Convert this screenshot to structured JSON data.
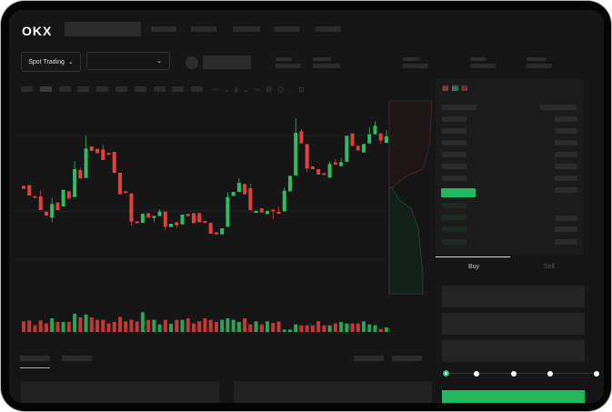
{
  "header": {
    "logo": "OKX"
  },
  "toolbar": {
    "market_select": "Spot Trading",
    "pair_select": ""
  },
  "order_form": {
    "tabs": [
      {
        "label": "Buy",
        "active": true
      },
      {
        "label": "Sell",
        "active": false
      }
    ],
    "slider_percent": 0
  },
  "colors": {
    "up": "#2ebd62",
    "down": "#e0403f",
    "bg": "#161616",
    "accent": "#22b85f"
  },
  "chart_data": {
    "type": "candlestick",
    "title": "",
    "xlabel": "",
    "ylabel": "",
    "ohlc": [
      [
        500,
        490,
        500,
        490
      ],
      [
        502,
        468,
        502,
        468
      ],
      [
        466,
        460,
        466,
        460
      ],
      [
        465,
        420,
        485,
        420
      ],
      [
        415,
        402,
        415,
        402
      ],
      [
        395,
        440,
        460,
        380
      ],
      [
        445,
        420,
        445,
        420
      ],
      [
        432,
        487,
        487,
        432
      ],
      [
        482,
        458,
        482,
        458
      ],
      [
        463,
        555,
        582,
        463
      ],
      [
        552,
        524,
        560,
        524
      ],
      [
        526,
        623,
        665,
        526
      ],
      [
        630,
        615,
        630,
        615
      ],
      [
        622,
        608,
        622,
        608
      ],
      [
        620,
        585,
        635,
        585
      ],
      [
        608,
        602,
        608,
        602
      ],
      [
        612,
        543,
        612,
        543
      ],
      [
        543,
        472,
        543,
        472
      ],
      [
        482,
        476,
        482,
        476
      ],
      [
        475,
        382,
        475,
        368
      ],
      [
        383,
        378,
        383,
        378
      ],
      [
        378,
        408,
        408,
        378
      ],
      [
        410,
        395,
        410,
        395
      ],
      [
        394,
        401,
        401,
        380
      ],
      [
        400,
        415,
        423,
        400
      ],
      [
        415,
        365,
        415,
        353
      ],
      [
        364,
        375,
        375,
        364
      ],
      [
        380,
        370,
        380,
        362
      ],
      [
        373,
        405,
        405,
        373
      ],
      [
        407,
        400,
        407,
        400
      ],
      [
        410,
        377,
        410,
        377
      ],
      [
        410,
        380,
        410,
        380
      ],
      [
        384,
        380,
        384,
        380
      ],
      [
        378,
        342,
        378,
        342
      ],
      [
        347,
        340,
        347,
        340
      ],
      [
        340,
        360,
        360,
        340
      ],
      [
        365,
        463,
        478,
        365
      ],
      [
        467,
        480,
        480,
        467
      ],
      [
        480,
        510,
        525,
        480
      ],
      [
        506,
        472,
        506,
        472
      ],
      [
        492,
        420,
        507,
        420
      ],
      [
        412,
        417,
        417,
        412
      ],
      [
        426,
        412,
        426,
        412
      ],
      [
        407,
        417,
        417,
        407
      ],
      [
        422,
        417,
        422,
        390
      ],
      [
        414,
        410,
        432,
        410
      ],
      [
        416,
        484,
        495,
        416
      ],
      [
        482,
        533,
        533,
        482
      ],
      [
        534,
        675,
        723,
        534
      ],
      [
        680,
        640,
        687,
        640
      ],
      [
        638,
        557,
        638,
        545
      ],
      [
        564,
        555,
        564,
        555
      ],
      [
        555,
        537,
        555,
        537
      ],
      [
        542,
        536,
        542,
        536
      ],
      [
        527,
        572,
        580,
        527
      ],
      [
        577,
        570,
        588,
        570
      ],
      [
        565,
        578,
        593,
        565
      ],
      [
        579,
        665,
        665,
        579
      ],
      [
        673,
        632,
        673,
        632
      ],
      [
        632,
        617,
        632,
        617
      ],
      [
        610,
        638,
        638,
        610
      ],
      [
        640,
        670,
        693,
        640
      ],
      [
        670,
        698,
        713,
        670
      ],
      [
        673,
        650,
        673,
        638
      ],
      [
        642,
        663,
        684,
        642
      ]
    ],
    "volume": [
      35,
      38,
      22,
      38,
      28,
      45,
      33,
      33,
      33,
      60,
      48,
      58,
      48,
      40,
      40,
      28,
      33,
      50,
      35,
      40,
      35,
      65,
      40,
      40,
      25,
      40,
      27,
      40,
      40,
      45,
      28,
      35,
      45,
      40,
      33,
      40,
      45,
      40,
      33,
      45,
      25,
      35,
      25,
      35,
      30,
      35,
      8,
      8,
      25,
      22,
      22,
      22,
      35,
      22,
      22,
      28,
      33,
      28,
      28,
      28,
      35,
      25,
      22,
      10,
      15
    ]
  }
}
